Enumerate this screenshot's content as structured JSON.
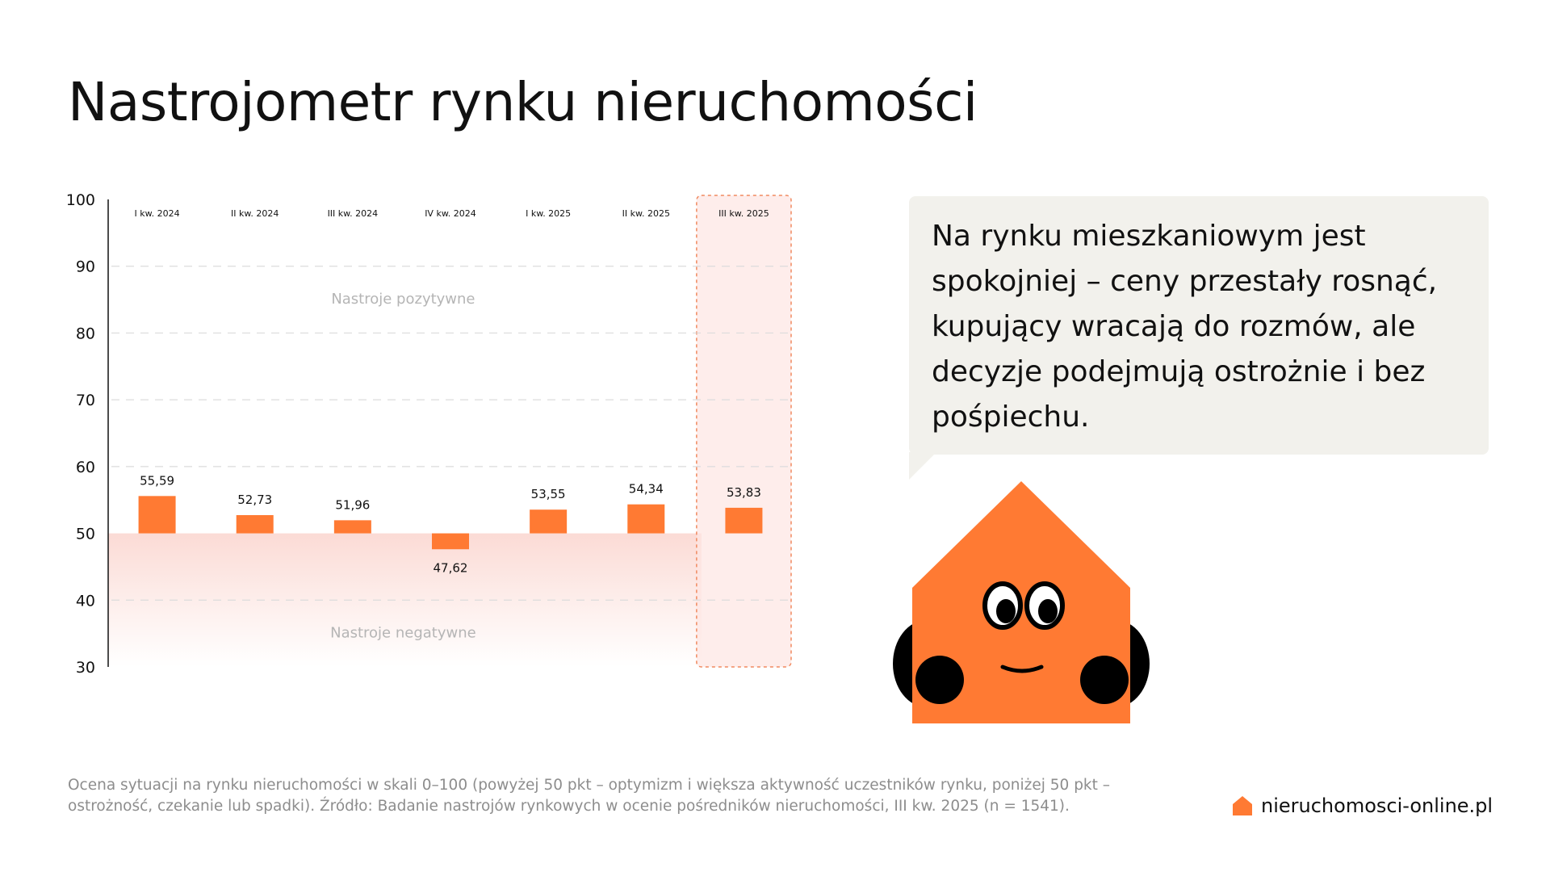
{
  "title": "Nastrojometr rynku nieruchomości",
  "chart_data": {
    "type": "bar",
    "categories": [
      "I kw. 2024",
      "II kw. 2024",
      "III kw. 2024",
      "IV kw. 2024",
      "I kw. 2025",
      "II kw. 2025",
      "III kw. 2025"
    ],
    "values": [
      55.59,
      52.73,
      51.96,
      47.62,
      53.55,
      54.34,
      53.83
    ],
    "value_labels": [
      "55,59",
      "52,73",
      "51,96",
      "47,62",
      "53,55",
      "54,34",
      "53,83"
    ],
    "baseline": 50,
    "ylim": [
      30,
      100
    ],
    "yticks": [
      "30",
      "40",
      "50",
      "60",
      "70",
      "80",
      "90",
      "100"
    ],
    "highlight_category": "III kw. 2025",
    "zone_labels": {
      "positive": "Nastroje pozytywne",
      "negative": "Nastroje negatywne"
    },
    "bar_color": "#ff7a33",
    "grid": true,
    "xlabel": "",
    "ylabel": ""
  },
  "quote": "Na rynku mieszkaniowym jest spokojniej – ceny przestały rosnąć, kupujący wracają do rozmów, ale decyzje podejmują ostrożnie i bez pośpiechu.",
  "footnote": "Ocena sytuacji na rynku nieruchomości w skali 0–100 (powyżej 50 pkt – optymizm i większa aktywność uczestników rynku, poniżej 50 pkt – ostrożność, czekanie lub spadki). Źródło: Badanie nastrojów rynkowych w ocenie pośredników  nieruchomości, III kw. 2025 (n = 1541).",
  "brand": {
    "name": "nieruchomosci-online.pl",
    "icon": "house-icon",
    "color": "#ff7a33"
  },
  "mascot": {
    "icon": "house-mascot-icon"
  }
}
